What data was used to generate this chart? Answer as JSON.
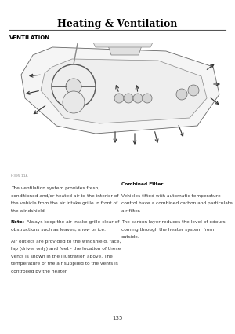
{
  "title": "Heating & Ventilation",
  "section_label": "VENTILATION",
  "page_number": "135",
  "bg_color": "#ffffff",
  "title_color": "#000000",
  "left_col_texts": [
    [
      "",
      false
    ],
    [
      "The ventilation system provides fresh,",
      false
    ],
    [
      "conditioned and/or heated air to the interior of",
      false
    ],
    [
      "the vehicle from the air intake grille in front of",
      false
    ],
    [
      "the windshield.",
      false
    ],
    [
      "",
      false
    ],
    [
      "Note:",
      true
    ],
    [
      " Always keep the air intake grille clear of",
      false
    ],
    [
      "obstructions such as leaves, snow or ice.",
      false
    ],
    [
      "",
      false
    ],
    [
      "Air outlets are provided to the windshield, face,",
      false
    ],
    [
      "lap (driver only) and feet - the location of these",
      false
    ],
    [
      "vents is shown in the illustration above. The",
      false
    ],
    [
      "temperature of the air supplied to the vents is",
      false
    ],
    [
      "controlled by the heater.",
      false
    ]
  ],
  "right_col_texts": [
    [
      "Combined Filter",
      true
    ],
    [
      "",
      false
    ],
    [
      "Vehicles fitted with automatic temperature",
      false
    ],
    [
      "control have a combined carbon and particulate",
      false
    ],
    [
      "air filter.",
      false
    ],
    [
      "",
      false
    ],
    [
      "The carbon layer reduces the level of odours",
      false
    ],
    [
      "coming through the heater system from",
      false
    ],
    [
      "outside.",
      false
    ]
  ],
  "title_font_size": 9,
  "section_font_size": 5,
  "body_font_size": 4.2,
  "caption_font_size": 3.2,
  "page_num_font_size": 5
}
